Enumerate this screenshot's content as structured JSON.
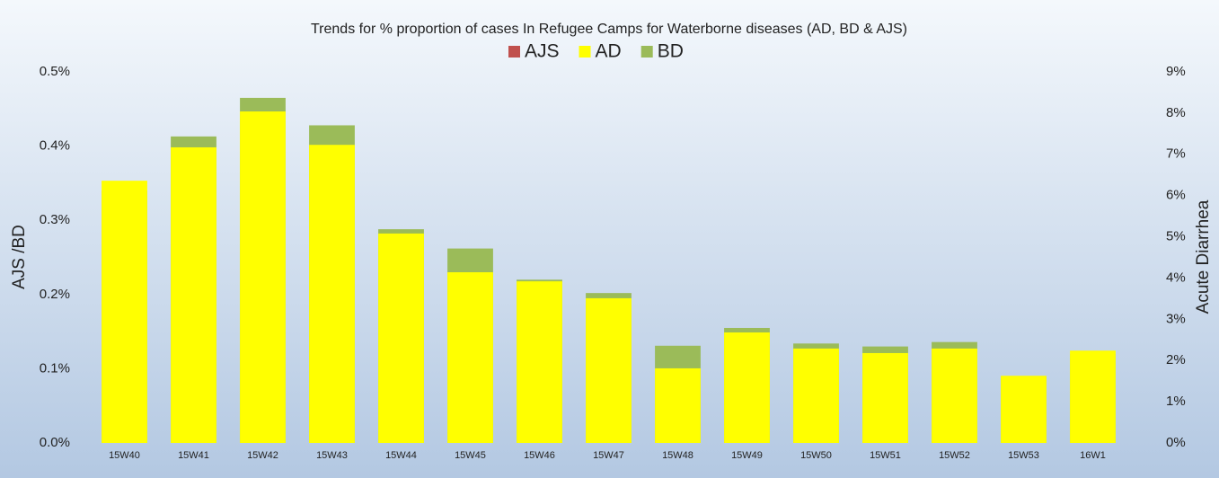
{
  "chart_data": {
    "type": "bar",
    "title": "Trends for % proportion of cases In Refugee Camps for Waterborne diseases (AD, BD & AJS)",
    "ylabel": "AJS /BD",
    "y2label": "Acute Diarrhea",
    "categories": [
      "15W40",
      "15W41",
      "15W42",
      "15W43",
      "15W44",
      "15W45",
      "15W46",
      "15W47",
      "15W48",
      "15W49",
      "15W50",
      "15W51",
      "15W52",
      "15W53",
      "16W1"
    ],
    "series": [
      {
        "name": "AJS",
        "color": "#c0504d",
        "axis": "y",
        "values": [
          0,
          0,
          0,
          0,
          0,
          0,
          0,
          0,
          0,
          0,
          0,
          0,
          0,
          0,
          0
        ]
      },
      {
        "name": "AD",
        "color": "#ffff00",
        "axis": "y2",
        "values": [
          6.36,
          7.17,
          8.04,
          7.23,
          5.08,
          4.14,
          3.92,
          3.51,
          1.81,
          2.68,
          2.29,
          2.18,
          2.29,
          1.63,
          2.24
        ]
      },
      {
        "name": "BD",
        "color": "#9bbb59",
        "axis": "y",
        "values": [
          0.34,
          0.413,
          0.465,
          0.428,
          0.288,
          0.262,
          0.22,
          0.202,
          0.131,
          0.155,
          0.134,
          0.13,
          0.136,
          0.09,
          0.12
        ]
      }
    ],
    "ylim": [
      0,
      0.5
    ],
    "yticks": [
      {
        "value": 0,
        "label": "0.0%"
      },
      {
        "value": 0.1,
        "label": "0.1%"
      },
      {
        "value": 0.2,
        "label": "0.2%"
      },
      {
        "value": 0.3,
        "label": "0.3%"
      },
      {
        "value": 0.4,
        "label": "0.4%"
      },
      {
        "value": 0.5,
        "label": "0.5%"
      }
    ],
    "y2lim": [
      0,
      9
    ],
    "y2ticks": [
      {
        "value": 0,
        "label": "0%"
      },
      {
        "value": 1,
        "label": "1%"
      },
      {
        "value": 2,
        "label": "2%"
      },
      {
        "value": 3,
        "label": "3%"
      },
      {
        "value": 4,
        "label": "4%"
      },
      {
        "value": 5,
        "label": "5%"
      },
      {
        "value": 6,
        "label": "6%"
      },
      {
        "value": 7,
        "label": "7%"
      },
      {
        "value": 8,
        "label": "8%"
      },
      {
        "value": 9,
        "label": "9%"
      }
    ],
    "legend": "top"
  }
}
